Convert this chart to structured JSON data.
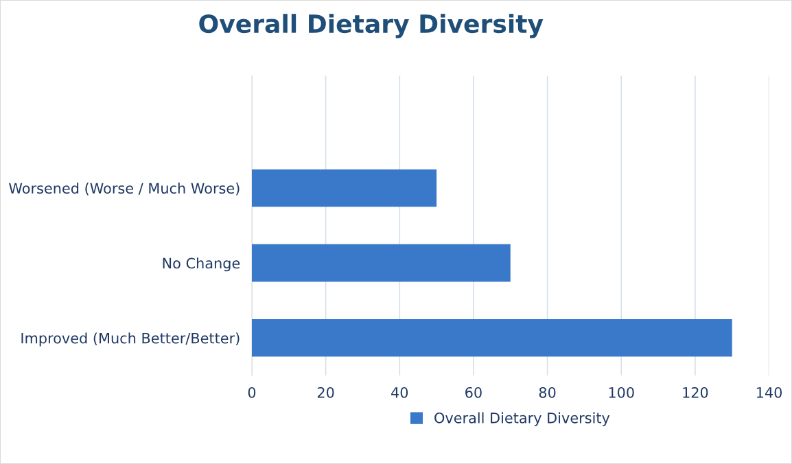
{
  "chart_data": {
    "type": "bar",
    "orientation": "horizontal",
    "title": "Overall Dietary Diversity",
    "categories": [
      null,
      "Worsened (Worse / Much Worse)",
      "No Change",
      "Improved (Much Better/Better)"
    ],
    "series": [
      {
        "name": "Overall Dietary Diversity",
        "color": "#3a78c9",
        "values": [
          null,
          50,
          70,
          130
        ]
      }
    ],
    "xlim": [
      0,
      140
    ],
    "xticks": [
      0,
      20,
      40,
      60,
      80,
      100,
      120,
      140
    ],
    "grid": "x",
    "legend": "bottom"
  }
}
